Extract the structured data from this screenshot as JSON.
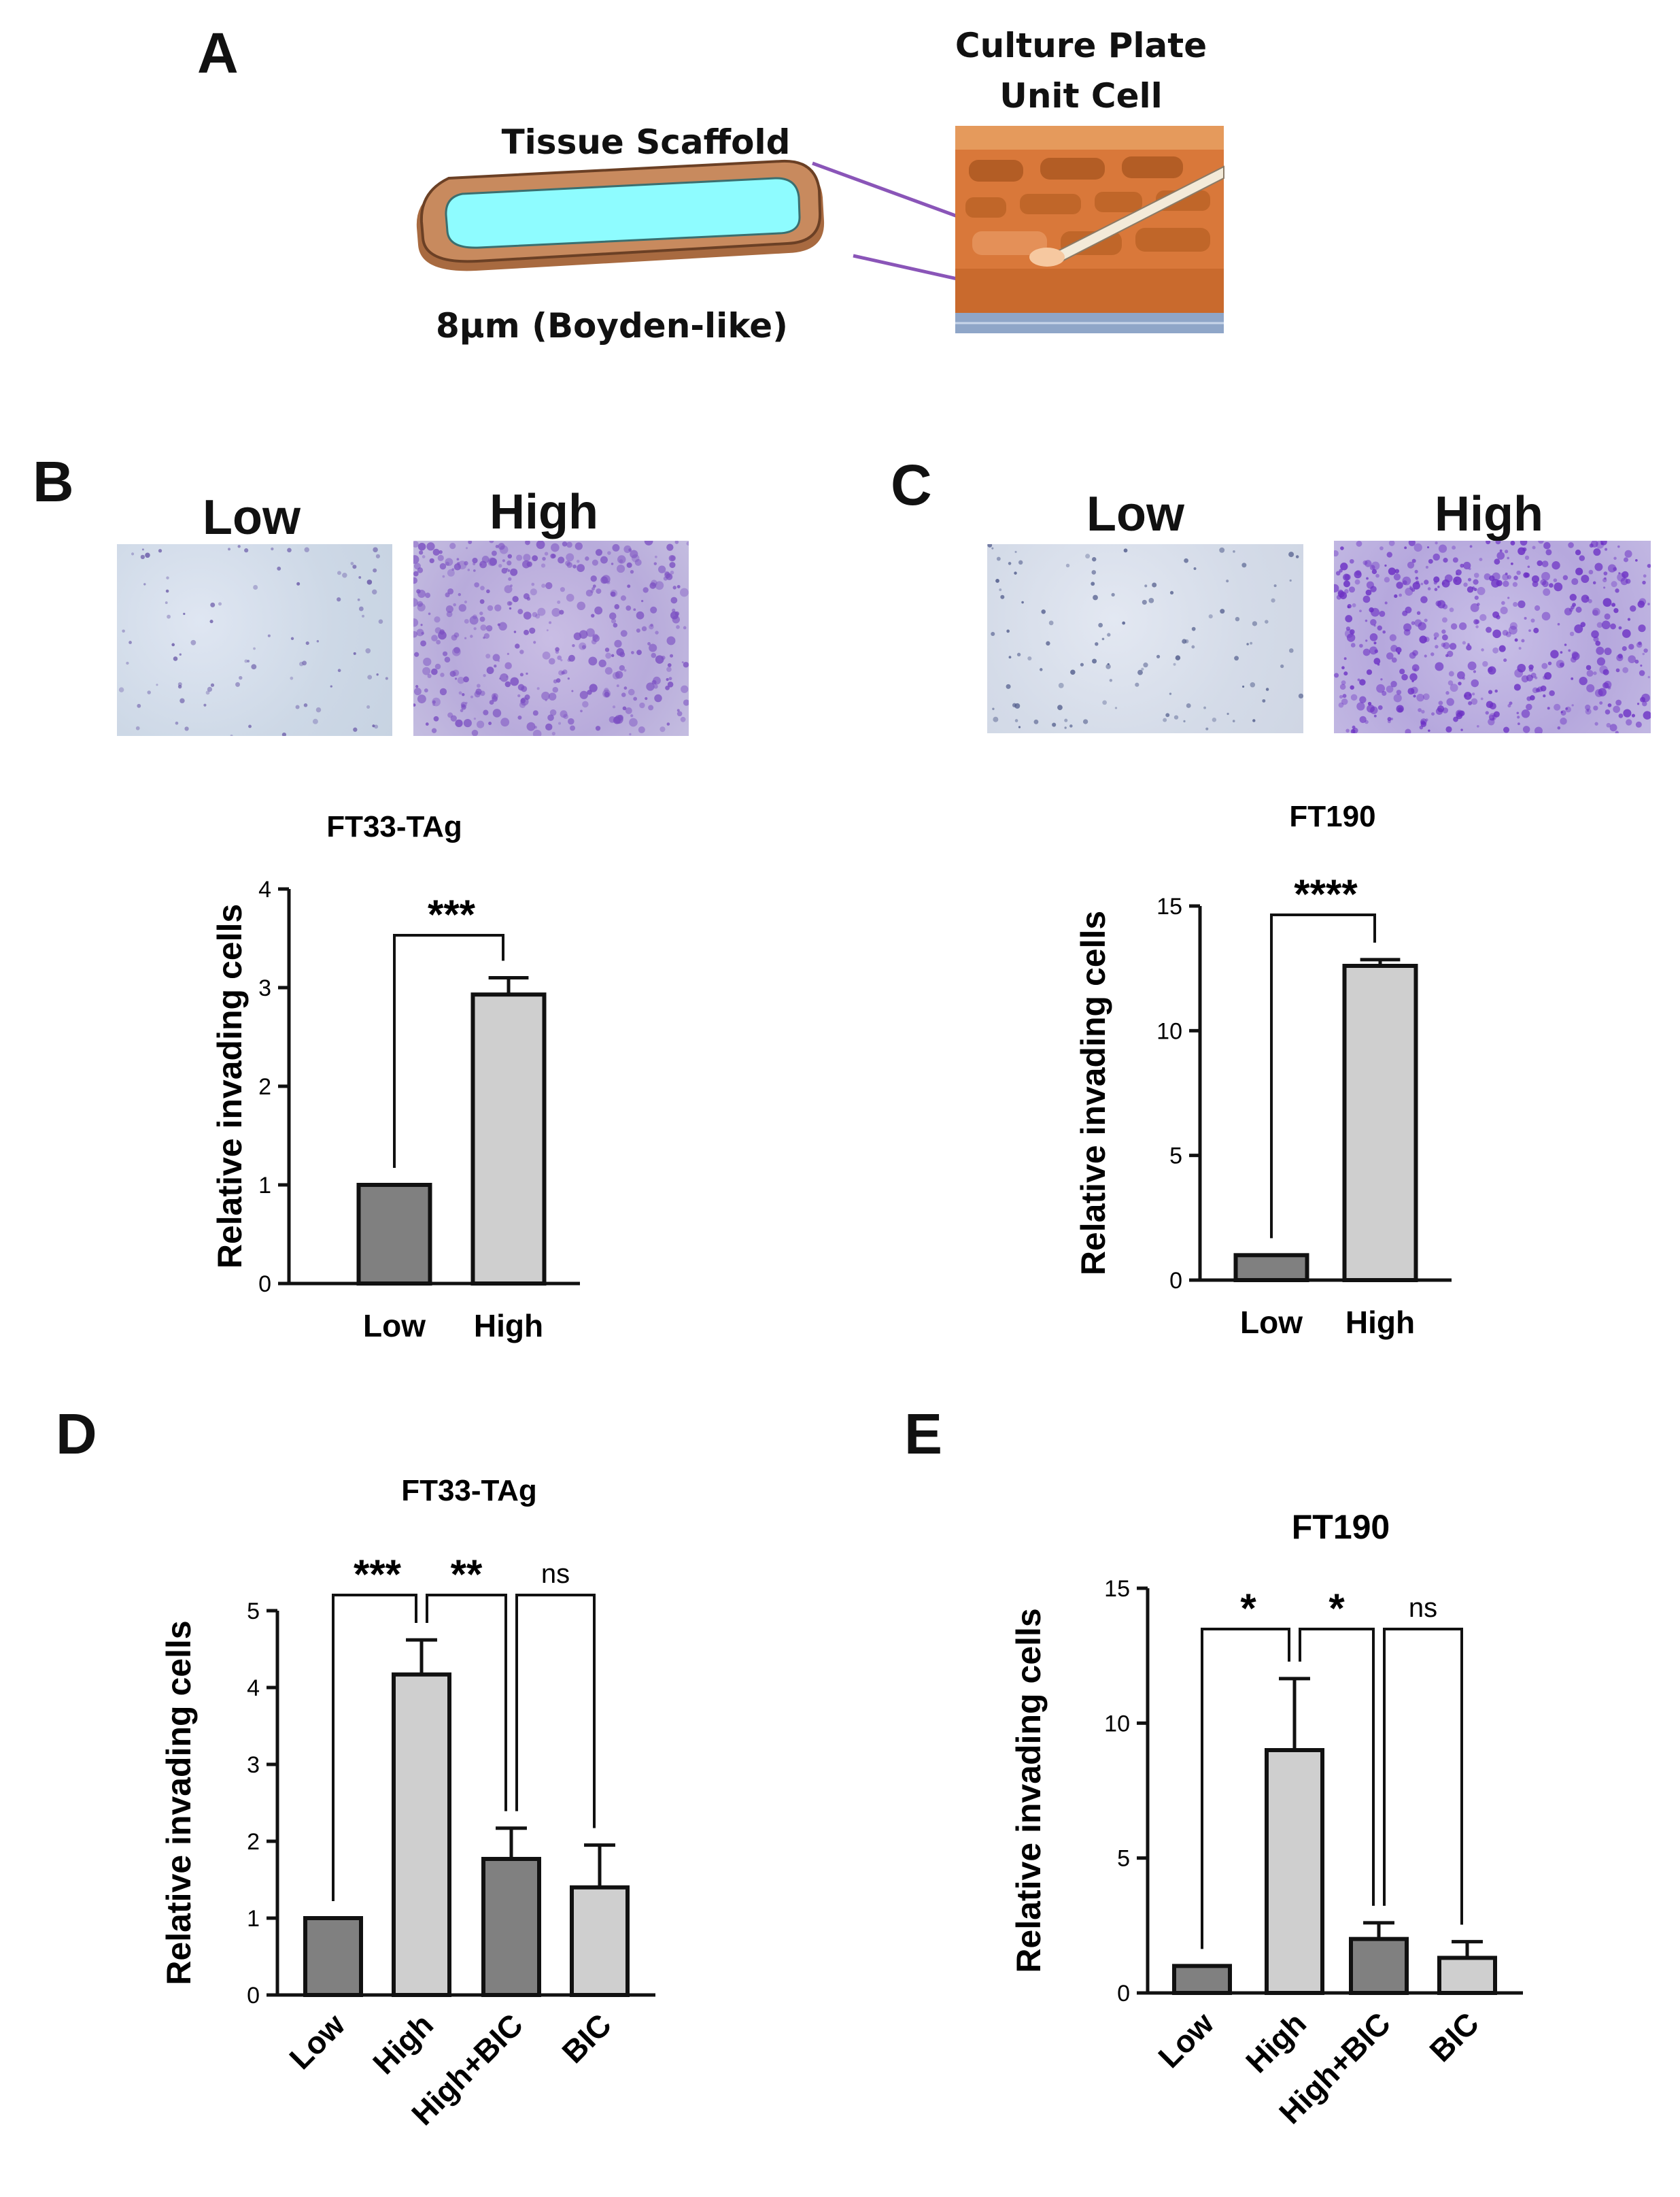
{
  "colors": {
    "dark_bar": "#808080",
    "light_bar": "#cfcfcf",
    "scaffold_fill": "#8efcff",
    "scaffold_frame": "#c88a5e",
    "plate_orange": "#d9783a",
    "connector": "#8a55b8",
    "stain_low": "#cfd6ea",
    "stain_high": "#a98ed6"
  },
  "panel_a": {
    "letter": "A",
    "culture_plate_label": "Culture Plate",
    "unit_cell_label": "Unit Cell",
    "tissue_scaffold_label": "Tissue Scaffold",
    "pore_label": "8µm (Boyden-like)"
  },
  "panel_b": {
    "letter": "B",
    "image_low_label": "Low",
    "image_high_label": "High"
  },
  "panel_c": {
    "letter": "C",
    "image_low_label": "Low",
    "image_high_label": "High"
  },
  "panel_d": {
    "letter": "D"
  },
  "panel_e": {
    "letter": "E"
  },
  "chart_data": [
    {
      "id": "chart_b",
      "type": "bar",
      "title": "FT33-TAg",
      "ylabel": "Relative invading cells",
      "xlabel": "",
      "categories": [
        "Low",
        "High"
      ],
      "values": [
        1.0,
        2.93
      ],
      "errors": [
        0,
        0.17
      ],
      "bar_colors": [
        "dark",
        "light"
      ],
      "ylim": [
        0,
        4
      ],
      "yticks": [
        "0",
        "1",
        "2",
        "3",
        "4"
      ],
      "significance": [
        {
          "from": 0,
          "to": 1,
          "label": "***"
        }
      ],
      "grid": false
    },
    {
      "id": "chart_c",
      "type": "bar",
      "title": "FT190",
      "ylabel": "Relative invading cells",
      "xlabel": "",
      "categories": [
        "Low",
        "High"
      ],
      "values": [
        1.0,
        12.6
      ],
      "errors": [
        0,
        0.25
      ],
      "bar_colors": [
        "dark",
        "light"
      ],
      "ylim": [
        0,
        15
      ],
      "yticks": [
        "0",
        "5",
        "10",
        "15"
      ],
      "significance": [
        {
          "from": 0,
          "to": 1,
          "label": "****"
        }
      ],
      "grid": false
    },
    {
      "id": "chart_d",
      "type": "bar",
      "title": "FT33-TAg",
      "ylabel": "Relative invading cells",
      "xlabel": "",
      "categories": [
        "Low",
        "High",
        "High+BIC",
        "BIC"
      ],
      "values": [
        1.0,
        4.17,
        1.77,
        1.4
      ],
      "errors": [
        0,
        0.45,
        0.4,
        0.55
      ],
      "bar_colors": [
        "dark",
        "light",
        "dark",
        "light"
      ],
      "ylim": [
        0,
        5
      ],
      "yticks": [
        "0",
        "1",
        "2",
        "3",
        "4",
        "5"
      ],
      "significance": [
        {
          "from": 0,
          "to": 1,
          "label": "***"
        },
        {
          "from": 1,
          "to": 2,
          "label": "**"
        },
        {
          "from": 2,
          "to": 3,
          "label": "ns"
        }
      ],
      "grid": false
    },
    {
      "id": "chart_e",
      "type": "bar",
      "title": "FT190",
      "ylabel": "Relative invading cells",
      "xlabel": "",
      "categories": [
        "Low",
        "High",
        "High+BIC",
        "BIC"
      ],
      "values": [
        1.0,
        9.0,
        2.0,
        1.3
      ],
      "errors": [
        0,
        2.65,
        0.6,
        0.6
      ],
      "bar_colors": [
        "dark",
        "light",
        "dark",
        "light"
      ],
      "ylim": [
        0,
        15
      ],
      "yticks": [
        "0",
        "5",
        "10",
        "15"
      ],
      "significance": [
        {
          "from": 0,
          "to": 1,
          "label": "*"
        },
        {
          "from": 1,
          "to": 2,
          "label": "*"
        },
        {
          "from": 2,
          "to": 3,
          "label": "ns"
        }
      ],
      "grid": false
    }
  ]
}
